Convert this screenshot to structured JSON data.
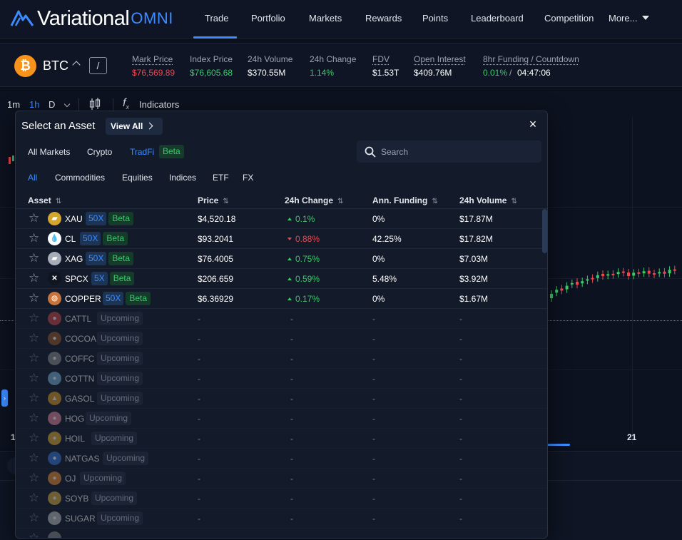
{
  "brand": {
    "word": "Variational",
    "suffix": "OMNI"
  },
  "nav": {
    "items": [
      "Trade",
      "Portfolio",
      "Markets",
      "Rewards",
      "Points",
      "Leaderboard",
      "Competition",
      "More..."
    ],
    "active": "Trade"
  },
  "ticker": {
    "symbol": "BTC",
    "pair_button": "/",
    "stats": [
      {
        "label": "Mark Price",
        "value": "$76,569.89",
        "color": "red"
      },
      {
        "label": "Index Price",
        "value": "$76,605.68",
        "color": "green"
      },
      {
        "label": "24h Volume",
        "value": "$370.55M",
        "color": "white"
      },
      {
        "label": "24h Change",
        "value": "1.14%",
        "color": "green"
      },
      {
        "label": "FDV",
        "value": "$1.53T",
        "color": "white"
      },
      {
        "label": "Open Interest",
        "value": "$409.76M",
        "color": "white"
      },
      {
        "label": "8hr Funding / Countdown",
        "value_a": "0.01%",
        "sep": "/",
        "value_b": "04:47:06"
      }
    ]
  },
  "toolbar": {
    "tf_1m": "1m",
    "tf_1h": "1h",
    "tf_d": "D",
    "indicators": "Indicators"
  },
  "chart": {
    "date_left": "1",
    "date_right": "21"
  },
  "modal": {
    "title": "Select an Asset",
    "view_all": "View All",
    "close": "×",
    "categories": [
      "All Markets",
      "Crypto",
      "TradFi"
    ],
    "active_category": "TradFi",
    "beta_label": "Beta",
    "search_placeholder": "Search",
    "subtabs": [
      "All",
      "Commodities",
      "Equities",
      "Indices",
      "ETF",
      "FX"
    ],
    "active_subtab": "All",
    "columns": [
      "Asset",
      "Price",
      "24h Change",
      "Ann. Funding",
      "24h Volume"
    ],
    "rows": [
      {
        "symbol": "XAU",
        "leverage": "50X",
        "tag": "Beta",
        "price": "$4,520.18",
        "change": "0.1%",
        "dir": "up",
        "funding": "0%",
        "volume": "$17.87M",
        "icon": "gold-bar-icon",
        "coin_bg": "#d4a72c",
        "glyph": "▰"
      },
      {
        "symbol": "CL",
        "leverage": "50X",
        "tag": "Beta",
        "price": "$93.2041",
        "change": "0.88%",
        "dir": "down",
        "funding": "42.25%",
        "volume": "$17.82M",
        "icon": "oil-drop-icon",
        "coin_bg": "#ffffff",
        "glyph": "💧"
      },
      {
        "symbol": "XAG",
        "leverage": "50X",
        "tag": "Beta",
        "price": "$76.4005",
        "change": "0.75%",
        "dir": "up",
        "funding": "0%",
        "volume": "$7.03M",
        "icon": "silver-icon",
        "coin_bg": "#a7adb8",
        "glyph": "▰"
      },
      {
        "symbol": "SPCX",
        "leverage": "5X",
        "tag": "Beta",
        "price": "$206.659",
        "change": "0.59%",
        "dir": "up",
        "funding": "5.48%",
        "volume": "$3.92M",
        "icon": "spacex-icon",
        "coin_bg": "#101520",
        "glyph": "✕"
      },
      {
        "symbol": "COPPER",
        "leverage": "50X",
        "tag": "Beta",
        "price": "$6.36929",
        "change": "0.17%",
        "dir": "up",
        "funding": "0%",
        "volume": "$1.67M",
        "icon": "copper-icon",
        "coin_bg": "#c8733a",
        "glyph": "◎"
      },
      {
        "symbol": "CATTL",
        "tag": "Upcoming",
        "price": "-",
        "change": "-",
        "funding": "-",
        "volume": "-",
        "icon": "cattle-icon",
        "coin_bg": "#d24a4a",
        "glyph": "●"
      },
      {
        "symbol": "COCOA",
        "tag": "Upcoming",
        "price": "-",
        "change": "-",
        "funding": "-",
        "volume": "-",
        "icon": "cocoa-icon",
        "coin_bg": "#9a5a2c",
        "glyph": "●"
      },
      {
        "symbol": "COFFC",
        "tag": "Upcoming",
        "price": "-",
        "change": "-",
        "funding": "-",
        "volume": "-",
        "icon": "coffee-icon",
        "coin_bg": "#8f8f8f",
        "glyph": "●"
      },
      {
        "symbol": "COTTN",
        "tag": "Upcoming",
        "price": "-",
        "change": "-",
        "funding": "-",
        "volume": "-",
        "icon": "cotton-icon",
        "coin_bg": "#7fb6e0",
        "glyph": "●"
      },
      {
        "symbol": "GASOL",
        "tag": "Upcoming",
        "price": "-",
        "change": "-",
        "funding": "-",
        "volume": "-",
        "icon": "gasoline-icon",
        "coin_bg": "#e0a020",
        "glyph": "▲"
      },
      {
        "symbol": "HOG",
        "tag": "Upcoming",
        "price": "-",
        "change": "-",
        "funding": "-",
        "volume": "-",
        "icon": "hog-icon",
        "coin_bg": "#e88aa0",
        "glyph": "●"
      },
      {
        "symbol": "HOIL",
        "tag": "Upcoming",
        "price": "-",
        "change": "-",
        "funding": "-",
        "volume": "-",
        "icon": "heating-oil-icon",
        "coin_bg": "#e8b030",
        "glyph": "●"
      },
      {
        "symbol": "NATGAS",
        "tag": "Upcoming",
        "price": "-",
        "change": "-",
        "funding": "-",
        "volume": "-",
        "icon": "natgas-icon",
        "coin_bg": "#3a7ae0",
        "glyph": "●"
      },
      {
        "symbol": "OJ",
        "tag": "Upcoming",
        "price": "-",
        "change": "-",
        "funding": "-",
        "volume": "-",
        "icon": "orange-juice-icon",
        "coin_bg": "#f09030",
        "glyph": "●"
      },
      {
        "symbol": "SOYB",
        "tag": "Upcoming",
        "price": "-",
        "change": "-",
        "funding": "-",
        "volume": "-",
        "icon": "soybean-icon",
        "coin_bg": "#e0b040",
        "glyph": "●"
      },
      {
        "symbol": "SUGAR",
        "tag": "Upcoming",
        "price": "-",
        "change": "-",
        "funding": "-",
        "volume": "-",
        "icon": "sugar-icon",
        "coin_bg": "#c0c0c0",
        "glyph": "●"
      },
      {
        "symbol": "",
        "tag": "",
        "price": "",
        "change": "",
        "funding": "",
        "volume": "",
        "icon": "partial-row-icon",
        "coin_bg": "#8a8a8a",
        "glyph": ""
      }
    ]
  },
  "colors": {
    "accent": "#3d8cff",
    "up": "#3cc96b",
    "down": "#f0464e",
    "beta_bg": "#153b2a",
    "lev_bg": "#1c3456"
  }
}
